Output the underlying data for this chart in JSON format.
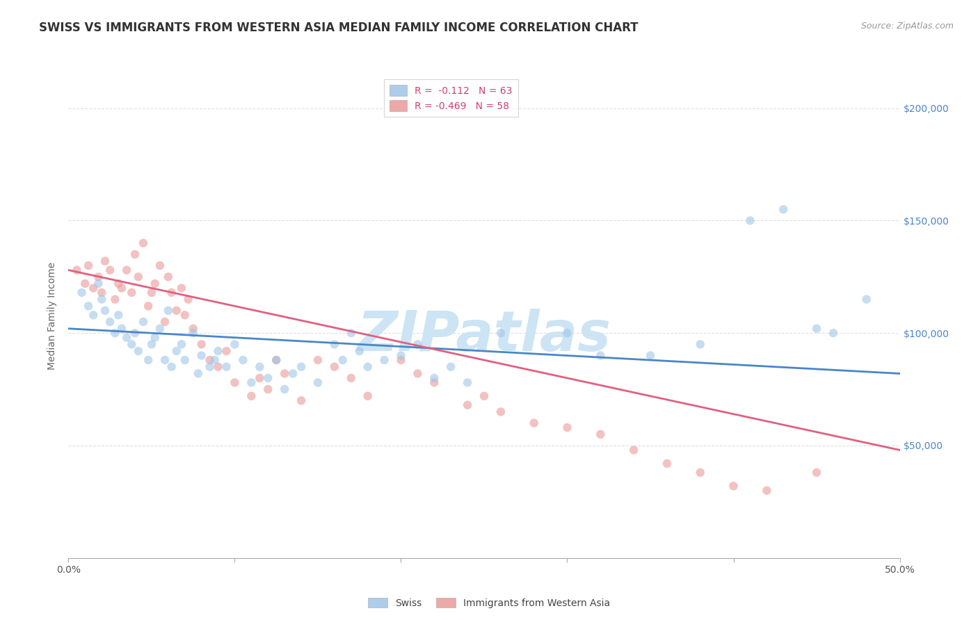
{
  "title": "SWISS VS IMMIGRANTS FROM WESTERN ASIA MEDIAN FAMILY INCOME CORRELATION CHART",
  "source": "Source: ZipAtlas.com",
  "ylabel": "Median Family Income",
  "ytick_labels": [
    "$50,000",
    "$100,000",
    "$150,000",
    "$200,000"
  ],
  "ytick_values": [
    50000,
    100000,
    150000,
    200000
  ],
  "ylim": [
    0,
    215000
  ],
  "xlim": [
    0.0,
    0.5
  ],
  "swiss_color": "#9fc5e8",
  "immig_color": "#ea9999",
  "swiss_line_color": "#4a86c8",
  "immig_line_color": "#e06080",
  "background_color": "#ffffff",
  "grid_color": "#e0e0e0",
  "watermark_text": "ZIPatlas",
  "watermark_color": "#cce4f4",
  "legend_swiss_r_val": "-0.112",
  "legend_swiss_n": "N = 63",
  "legend_immig_r_val": "-0.469",
  "legend_immig_n": "N = 58",
  "swiss_x": [
    0.008,
    0.012,
    0.015,
    0.018,
    0.02,
    0.022,
    0.025,
    0.028,
    0.03,
    0.032,
    0.035,
    0.038,
    0.04,
    0.042,
    0.045,
    0.048,
    0.05,
    0.052,
    0.055,
    0.058,
    0.06,
    0.062,
    0.065,
    0.068,
    0.07,
    0.075,
    0.078,
    0.08,
    0.085,
    0.088,
    0.09,
    0.095,
    0.1,
    0.105,
    0.11,
    0.115,
    0.12,
    0.125,
    0.13,
    0.135,
    0.14,
    0.15,
    0.16,
    0.165,
    0.17,
    0.175,
    0.18,
    0.19,
    0.2,
    0.21,
    0.22,
    0.23,
    0.24,
    0.26,
    0.3,
    0.32,
    0.35,
    0.38,
    0.41,
    0.43,
    0.45,
    0.46,
    0.48
  ],
  "swiss_y": [
    118000,
    112000,
    108000,
    122000,
    115000,
    110000,
    105000,
    100000,
    108000,
    102000,
    98000,
    95000,
    100000,
    92000,
    105000,
    88000,
    95000,
    98000,
    102000,
    88000,
    110000,
    85000,
    92000,
    95000,
    88000,
    100000,
    82000,
    90000,
    85000,
    88000,
    92000,
    85000,
    95000,
    88000,
    78000,
    85000,
    80000,
    88000,
    75000,
    82000,
    85000,
    78000,
    95000,
    88000,
    100000,
    92000,
    85000,
    88000,
    90000,
    95000,
    80000,
    85000,
    78000,
    100000,
    100000,
    90000,
    90000,
    95000,
    150000,
    155000,
    102000,
    100000,
    115000
  ],
  "immig_x": [
    0.005,
    0.01,
    0.012,
    0.015,
    0.018,
    0.02,
    0.022,
    0.025,
    0.028,
    0.03,
    0.032,
    0.035,
    0.038,
    0.04,
    0.042,
    0.045,
    0.048,
    0.05,
    0.052,
    0.055,
    0.058,
    0.06,
    0.062,
    0.065,
    0.068,
    0.07,
    0.072,
    0.075,
    0.08,
    0.085,
    0.09,
    0.095,
    0.1,
    0.11,
    0.115,
    0.12,
    0.125,
    0.13,
    0.14,
    0.15,
    0.16,
    0.17,
    0.18,
    0.2,
    0.21,
    0.22,
    0.24,
    0.25,
    0.26,
    0.28,
    0.3,
    0.32,
    0.34,
    0.36,
    0.38,
    0.4,
    0.42,
    0.45
  ],
  "immig_y": [
    128000,
    122000,
    130000,
    120000,
    125000,
    118000,
    132000,
    128000,
    115000,
    122000,
    120000,
    128000,
    118000,
    135000,
    125000,
    140000,
    112000,
    118000,
    122000,
    130000,
    105000,
    125000,
    118000,
    110000,
    120000,
    108000,
    115000,
    102000,
    95000,
    88000,
    85000,
    92000,
    78000,
    72000,
    80000,
    75000,
    88000,
    82000,
    70000,
    88000,
    85000,
    80000,
    72000,
    88000,
    82000,
    78000,
    68000,
    72000,
    65000,
    60000,
    58000,
    55000,
    48000,
    42000,
    38000,
    32000,
    30000,
    38000
  ],
  "swiss_line_x": [
    0.0,
    0.5
  ],
  "swiss_line_y": [
    102000,
    82000
  ],
  "immig_line_x": [
    0.0,
    0.5
  ],
  "immig_line_y": [
    128000,
    48000
  ],
  "title_fontsize": 12,
  "source_fontsize": 9,
  "axis_label_fontsize": 10,
  "tick_fontsize": 10,
  "marker_size": 80,
  "marker_alpha": 0.6,
  "legend_fontsize": 10,
  "ytick_label_color": "#4a86c8",
  "text_color": "#333333",
  "axis_color": "#aaaaaa"
}
